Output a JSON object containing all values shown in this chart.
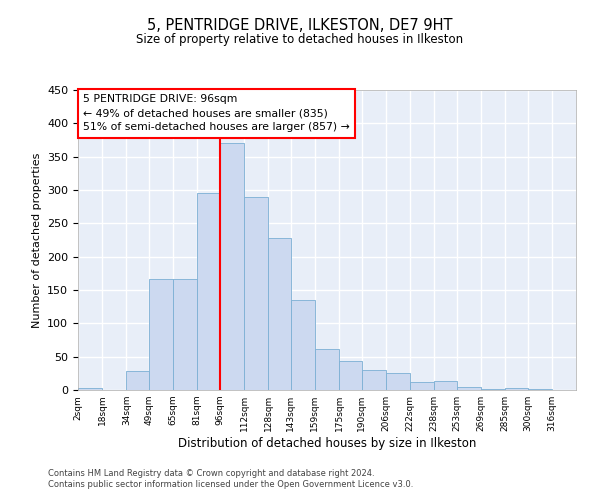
{
  "title": "5, PENTRIDGE DRIVE, ILKESTON, DE7 9HT",
  "subtitle": "Size of property relative to detached houses in Ilkeston",
  "xlabel": "Distribution of detached houses by size in Ilkeston",
  "ylabel": "Number of detached properties",
  "bar_color": "#ccd9f0",
  "bar_edge_color": "#7bafd4",
  "background_color": "#e8eef8",
  "grid_color": "#ffffff",
  "red_line_x": 96,
  "annotation_title": "5 PENTRIDGE DRIVE: 96sqm",
  "annotation_line1": "← 49% of detached houses are smaller (835)",
  "annotation_line2": "51% of semi-detached houses are larger (857) →",
  "tick_labels": [
    "2sqm",
    "18sqm",
    "34sqm",
    "49sqm",
    "65sqm",
    "81sqm",
    "96sqm",
    "112sqm",
    "128sqm",
    "143sqm",
    "159sqm",
    "175sqm",
    "190sqm",
    "206sqm",
    "222sqm",
    "238sqm",
    "253sqm",
    "269sqm",
    "285sqm",
    "300sqm",
    "316sqm"
  ],
  "bin_edges": [
    2,
    18,
    34,
    49,
    65,
    81,
    96,
    112,
    128,
    143,
    159,
    175,
    190,
    206,
    222,
    238,
    253,
    269,
    285,
    300,
    316
  ],
  "bar_heights": [
    3,
    0,
    28,
    166,
    167,
    295,
    370,
    289,
    228,
    135,
    62,
    43,
    30,
    25,
    12,
    14,
    5,
    1,
    3,
    1,
    0
  ],
  "ylim": [
    0,
    450
  ],
  "yticks": [
    0,
    50,
    100,
    150,
    200,
    250,
    300,
    350,
    400,
    450
  ],
  "footnote1": "Contains HM Land Registry data © Crown copyright and database right 2024.",
  "footnote2": "Contains public sector information licensed under the Open Government Licence v3.0."
}
